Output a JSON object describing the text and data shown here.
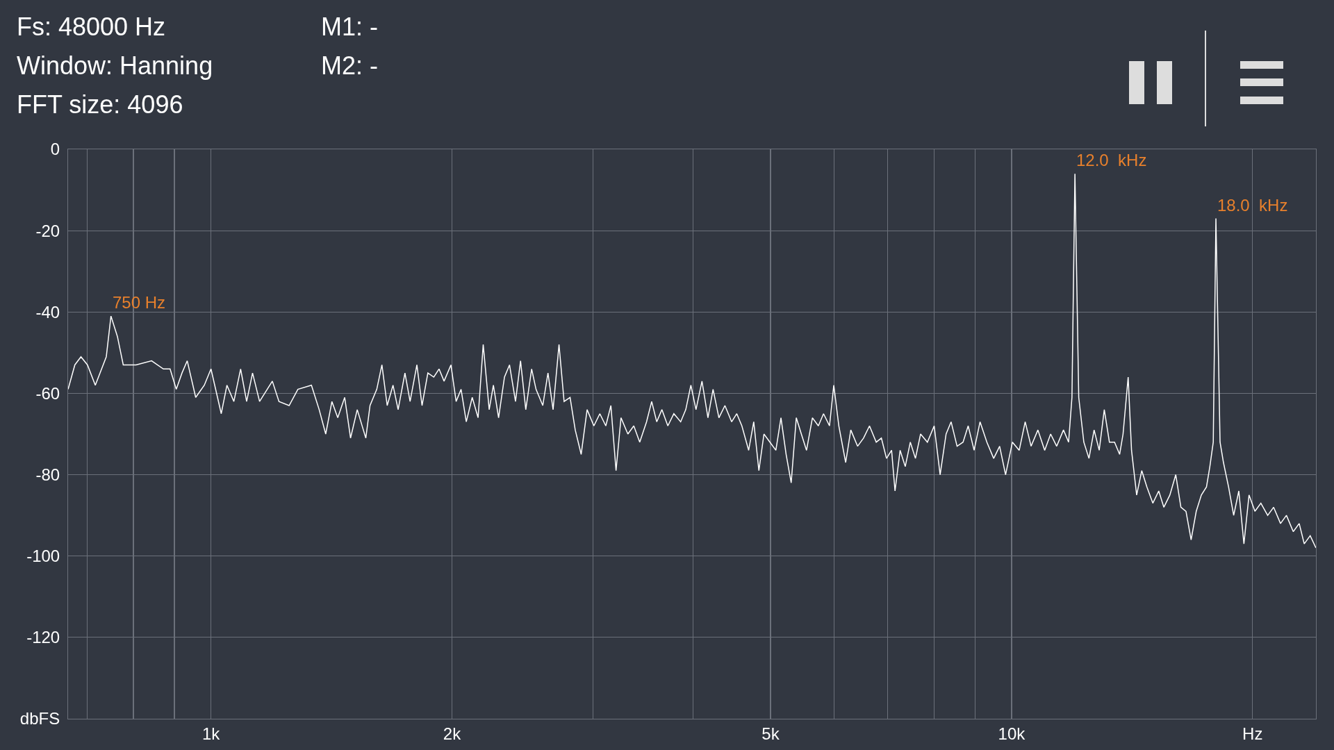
{
  "chart_data": {
    "type": "line",
    "annotations": [
      "Fs: 48000 Hz",
      "Window: Hanning",
      "FFT size: 4096",
      "M1: -",
      "M2: -",
      {
        "text": "750 Hz",
        "x": 750,
        "y": -41
      },
      {
        "text": "12.0  kHz",
        "x": 12000,
        "y": -6
      },
      {
        "text": "18.0  kHz",
        "x": 18000,
        "y": -17
      }
    ],
    "x": [
      663,
      676,
      688,
      701,
      717,
      740,
      750,
      764,
      777,
      806,
      843,
      872,
      889,
      905,
      920,
      934,
      957,
      981,
      1000,
      1030,
      1047,
      1068,
      1089,
      1108,
      1127,
      1150,
      1193,
      1216,
      1252,
      1284,
      1335,
      1365,
      1391,
      1416,
      1440,
      1469,
      1494,
      1523,
      1561,
      1580,
      1611,
      1635,
      1660,
      1688,
      1713,
      1747,
      1773,
      1808,
      1835,
      1866,
      1898,
      1927,
      1955,
      1994,
      2024,
      2053,
      2084,
      2120,
      2156,
      2188,
      2226,
      2253,
      2287,
      2326,
      2360,
      2401,
      2436,
      2473,
      2515,
      2547,
      2597,
      2636,
      2675,
      2721,
      2761,
      2809,
      2851,
      2900,
      2950,
      3008,
      3060,
      3113,
      3159,
      3206,
      3252,
      3317,
      3374,
      3432,
      3500,
      3552,
      3604,
      3658,
      3721,
      3786,
      3861,
      3918,
      3976,
      4035,
      4105,
      4176,
      4238,
      4310,
      4385,
      4471,
      4537,
      4604,
      4695,
      4764,
      4835,
      4906,
      4991,
      5077,
      5152,
      5229,
      5306,
      5384,
      5463,
      5545,
      5640,
      5737,
      5823,
      5924,
      5997,
      6085,
      6206,
      6298,
      6422,
      6533,
      6646,
      6776,
      6877,
      6979,
      7082,
      7152,
      7258,
      7366,
      7474,
      7585,
      7698,
      7850,
      8005,
      8143,
      8284,
      8404,
      8550,
      8698,
      8827,
      8979,
      9134,
      9315,
      9499,
      9663,
      9830,
      10025,
      10223,
      10400,
      10578,
      10788,
      11000,
      11190,
      11386,
      11611,
      11783,
      11897,
      12000,
      12132,
      12311,
      12494,
      12680,
      12868,
      13057,
      13251,
      13447,
      13646,
      13781,
      13985,
      14121,
      14331,
      14543,
      14759,
      15013,
      15271,
      15497,
      15766,
      16037,
      16275,
      16516,
      16761,
      17010,
      17262,
      17518,
      17689,
      17863,
      18000,
      18216,
      18395,
      18667,
      18944,
      19225,
      19510,
      19799,
      20137,
      20485,
      20890,
      21251,
      21676,
      22048,
      22484,
      22872,
      23206,
      23607,
      24000
    ],
    "values": [
      -59,
      -53,
      -51,
      -53,
      -58,
      -51,
      -41,
      -46,
      -53,
      -53,
      -52,
      -54,
      -54,
      -59,
      -55,
      -52,
      -61,
      -58,
      -54,
      -65,
      -58,
      -62,
      -54,
      -62,
      -55,
      -62,
      -57,
      -62,
      -63,
      -59,
      -58,
      -64,
      -70,
      -62,
      -66,
      -61,
      -71,
      -64,
      -71,
      -63,
      -59,
      -53,
      -63,
      -58,
      -64,
      -55,
      -62,
      -53,
      -63,
      -55,
      -56,
      -54,
      -57,
      -53,
      -62,
      -59,
      -67,
      -61,
      -66,
      -48,
      -64,
      -58,
      -66,
      -56,
      -53,
      -62,
      -52,
      -64,
      -54,
      -59,
      -63,
      -55,
      -64,
      -48,
      -62,
      -61,
      -69,
      -75,
      -64,
      -68,
      -65,
      -68,
      -63,
      -79,
      -66,
      -70,
      -68,
      -72,
      -67,
      -62,
      -67,
      -64,
      -68,
      -65,
      -67,
      -64,
      -58,
      -64,
      -57,
      -66,
      -59,
      -66,
      -63,
      -67,
      -65,
      -68,
      -74,
      -67,
      -79,
      -70,
      -72,
      -74,
      -66,
      -75,
      -82,
      -66,
      -70,
      -74,
      -66,
      -68,
      -65,
      -68,
      -58,
      -68,
      -77,
      -69,
      -73,
      -71,
      -68,
      -72,
      -71,
      -76,
      -74,
      -84,
      -74,
      -78,
      -72,
      -76,
      -70,
      -72,
      -68,
      -80,
      -70,
      -67,
      -73,
      -72,
      -68,
      -74,
      -67,
      -72,
      -76,
      -73,
      -80,
      -72,
      -74,
      -67,
      -73,
      -69,
      -74,
      -70,
      -73,
      -69,
      -72,
      -61,
      -6,
      -61,
      -72,
      -76,
      -69,
      -74,
      -64,
      -72,
      -72,
      -75,
      -70,
      -56,
      -74,
      -85,
      -79,
      -83,
      -87,
      -84,
      -88,
      -85,
      -80,
      -88,
      -89,
      -96,
      -89,
      -85,
      -83,
      -78,
      -72,
      -17,
      -72,
      -77,
      -83,
      -90,
      -84,
      -97,
      -85,
      -89,
      -87,
      -90,
      -88,
      -92,
      -90,
      -94,
      -92,
      -97,
      -95,
      -98
    ],
    "color": "#ffffff",
    "log": "x",
    "xlim": [
      663,
      24000
    ],
    "xticks": [
      {
        "value": 700,
        "label": null
      },
      {
        "value": 800,
        "label": null
      },
      {
        "value": 900,
        "label": null
      },
      {
        "value": 1000,
        "label": "1k"
      },
      {
        "value": 2000,
        "label": "2k"
      },
      {
        "value": 3000,
        "label": null
      },
      {
        "value": 4000,
        "label": null
      },
      {
        "value": 5000,
        "label": "5k"
      },
      {
        "value": 6000,
        "label": null
      },
      {
        "value": 7000,
        "label": null
      },
      {
        "value": 8000,
        "label": null
      },
      {
        "value": 9000,
        "label": null
      },
      {
        "value": 10000,
        "label": "10k"
      },
      {
        "value": 20000,
        "label": "Hz"
      }
    ],
    "ylim": [
      -140,
      0
    ],
    "yticks": [
      0,
      -20,
      -40,
      -60,
      -80,
      -100,
      -120,
      {
        "value": -140,
        "label": "dbFS"
      }
    ],
    "grid": true
  }
}
